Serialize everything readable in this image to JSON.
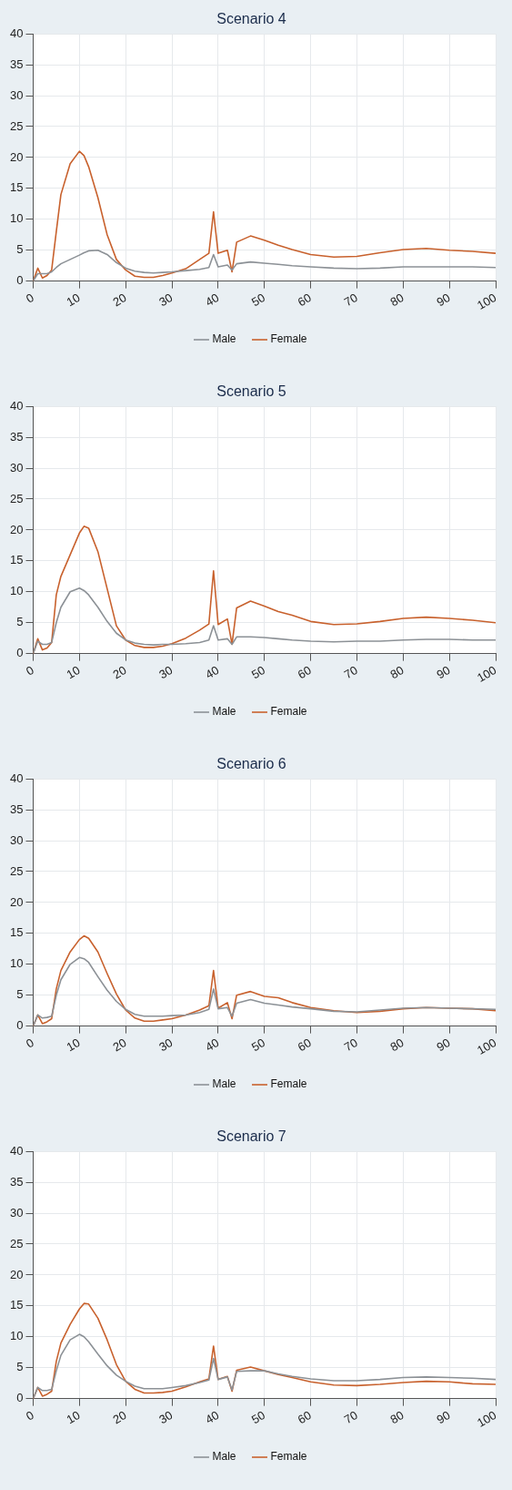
{
  "chart_data": [
    {
      "type": "line",
      "title": "Scenario 4",
      "x": [
        0,
        1,
        2,
        3,
        4,
        5,
        6,
        8,
        10,
        11,
        12,
        14,
        16,
        18,
        20,
        22,
        24,
        26,
        28,
        30,
        33,
        36,
        38,
        39,
        40,
        42,
        43,
        44,
        47,
        50,
        53,
        56,
        60,
        65,
        70,
        75,
        80,
        85,
        90,
        95,
        100
      ],
      "xlim": [
        0,
        100
      ],
      "xticks": [
        0,
        10,
        20,
        30,
        40,
        50,
        60,
        70,
        80,
        90,
        100
      ],
      "ylim": [
        0,
        40
      ],
      "yticks": [
        0,
        5,
        10,
        15,
        20,
        25,
        30,
        35,
        40
      ],
      "grid": true,
      "legend": "bottom",
      "series": [
        {
          "name": "Male",
          "color": "#8c9196",
          "values": [
            0,
            1.2,
            1.2,
            1.2,
            1.5,
            2.2,
            2.8,
            3.5,
            4.2,
            4.6,
            4.9,
            5,
            4.3,
            3,
            2.1,
            1.6,
            1.4,
            1.3,
            1.4,
            1.5,
            1.7,
            1.9,
            2.2,
            4.3,
            2.3,
            2.6,
            1.8,
            2.8,
            3.1,
            2.9,
            2.7,
            2.5,
            2.3,
            2.1,
            2,
            2.1,
            2.3,
            2.3,
            2.3,
            2.3,
            2.2
          ]
        },
        {
          "name": "Female",
          "color": "#c8612d",
          "values": [
            0,
            2.1,
            0.5,
            0.9,
            1.8,
            8,
            14,
            19,
            21,
            20.3,
            18.5,
            13.5,
            7.5,
            3.5,
            1.8,
            0.8,
            0.6,
            0.6,
            0.9,
            1.3,
            2,
            3.5,
            4.5,
            11.2,
            4.5,
            5,
            1.5,
            6.3,
            7.3,
            6.6,
            5.8,
            5.1,
            4.3,
            3.9,
            4,
            4.6,
            5.1,
            5.3,
            5,
            4.8,
            4.5
          ]
        }
      ]
    },
    {
      "type": "line",
      "title": "Scenario 5",
      "x": [
        0,
        1,
        2,
        3,
        4,
        5,
        6,
        8,
        10,
        11,
        12,
        14,
        16,
        18,
        20,
        22,
        24,
        26,
        28,
        30,
        33,
        36,
        38,
        39,
        40,
        42,
        43,
        44,
        47,
        50,
        53,
        56,
        60,
        65,
        70,
        75,
        80,
        85,
        90,
        95,
        100
      ],
      "xlim": [
        0,
        100
      ],
      "xticks": [
        0,
        10,
        20,
        30,
        40,
        50,
        60,
        70,
        80,
        90,
        100
      ],
      "ylim": [
        0,
        40
      ],
      "yticks": [
        0,
        5,
        10,
        15,
        20,
        25,
        30,
        35,
        40
      ],
      "grid": true,
      "legend": "bottom",
      "series": [
        {
          "name": "Male",
          "color": "#8c9196",
          "values": [
            0,
            2,
            1.5,
            1.5,
            1.8,
            5,
            7.5,
            10,
            10.6,
            10.2,
            9.5,
            7.5,
            5.2,
            3.3,
            2.2,
            1.7,
            1.5,
            1.4,
            1.5,
            1.5,
            1.6,
            1.8,
            2.2,
            4.5,
            2.2,
            2.4,
            1.5,
            2.7,
            2.7,
            2.6,
            2.4,
            2.2,
            2,
            1.9,
            2,
            2,
            2.2,
            2.3,
            2.3,
            2.2,
            2.2
          ]
        },
        {
          "name": "Female",
          "color": "#c8612d",
          "values": [
            0,
            2.4,
            0.6,
            0.9,
            1.8,
            9.5,
            12.5,
            16,
            19.5,
            20.6,
            20.3,
            16.5,
            10.5,
            4.5,
            2.2,
            1.3,
            1,
            1,
            1.2,
            1.6,
            2.5,
            3.8,
            4.8,
            13.4,
            4.7,
            5.6,
            1.5,
            7.4,
            8.5,
            7.7,
            6.8,
            6.2,
            5.2,
            4.7,
            4.8,
            5.2,
            5.7,
            5.9,
            5.7,
            5.4,
            5
          ]
        }
      ]
    },
    {
      "type": "line",
      "title": "Scenario 6",
      "x": [
        0,
        1,
        2,
        3,
        4,
        5,
        6,
        8,
        10,
        11,
        12,
        14,
        16,
        18,
        20,
        22,
        24,
        26,
        28,
        30,
        33,
        36,
        38,
        39,
        40,
        42,
        43,
        44,
        47,
        50,
        53,
        56,
        60,
        65,
        70,
        75,
        80,
        85,
        90,
        95,
        100
      ],
      "xlim": [
        0,
        100
      ],
      "xticks": [
        0,
        10,
        20,
        30,
        40,
        50,
        60,
        70,
        80,
        90,
        100
      ],
      "ylim": [
        0,
        40
      ],
      "yticks": [
        0,
        5,
        10,
        15,
        20,
        25,
        30,
        35,
        40
      ],
      "grid": true,
      "legend": "bottom",
      "series": [
        {
          "name": "Male",
          "color": "#8c9196",
          "values": [
            0,
            1.8,
            1.3,
            1.4,
            1.6,
            5,
            7.5,
            10,
            11.1,
            10.9,
            10.3,
            8,
            5.8,
            4,
            2.7,
            1.9,
            1.6,
            1.6,
            1.6,
            1.7,
            1.8,
            2.2,
            2.7,
            6,
            2.8,
            3,
            1.6,
            3.7,
            4.3,
            3.7,
            3.4,
            3.1,
            2.8,
            2.4,
            2.3,
            2.6,
            2.9,
            3,
            2.9,
            2.8,
            2.7
          ]
        },
        {
          "name": "Female",
          "color": "#c8612d",
          "values": [
            0,
            1.8,
            0.4,
            0.7,
            1.2,
            6,
            9,
            12,
            14,
            14.6,
            14.2,
            12,
            8.5,
            5.2,
            2.6,
            1.3,
            0.8,
            0.8,
            1,
            1.2,
            1.8,
            2.6,
            3.3,
            9,
            2.9,
            3.8,
            1.2,
            5,
            5.6,
            4.8,
            4.6,
            3.8,
            3,
            2.5,
            2.2,
            2.4,
            2.8,
            3,
            2.9,
            2.8,
            2.5
          ]
        }
      ]
    },
    {
      "type": "line",
      "title": "Scenario 7",
      "x": [
        0,
        1,
        2,
        3,
        4,
        5,
        6,
        8,
        10,
        11,
        12,
        14,
        16,
        18,
        20,
        22,
        24,
        26,
        28,
        30,
        33,
        36,
        38,
        39,
        40,
        42,
        43,
        44,
        47,
        50,
        53,
        56,
        60,
        65,
        70,
        75,
        80,
        85,
        90,
        95,
        100
      ],
      "xlim": [
        0,
        100
      ],
      "xticks": [
        0,
        10,
        20,
        30,
        40,
        50,
        60,
        70,
        80,
        90,
        100
      ],
      "ylim": [
        0,
        40
      ],
      "yticks": [
        0,
        5,
        10,
        15,
        20,
        25,
        30,
        35,
        40
      ],
      "grid": true,
      "legend": "bottom",
      "series": [
        {
          "name": "Male",
          "color": "#8c9196",
          "values": [
            0,
            1.8,
            1.3,
            1.3,
            1.5,
            4.5,
            7,
            9.5,
            10.4,
            10,
            9.2,
            7.2,
            5.3,
            3.8,
            2.8,
            2,
            1.6,
            1.6,
            1.6,
            1.8,
            2.1,
            2.6,
            3,
            6.5,
            3.1,
            3.5,
            1.4,
            4.4,
            4.5,
            4.5,
            4,
            3.6,
            3.2,
            2.9,
            2.9,
            3.1,
            3.4,
            3.5,
            3.4,
            3.3,
            3.1
          ]
        },
        {
          "name": "Female",
          "color": "#c8612d",
          "values": [
            0,
            1.8,
            0.4,
            0.7,
            1.2,
            6,
            9,
            12,
            14.5,
            15.4,
            15.3,
            13,
            9.5,
            5.5,
            2.8,
            1.5,
            0.9,
            0.9,
            1,
            1.2,
            1.9,
            2.7,
            3.2,
            8.5,
            3.1,
            3.6,
            1.2,
            4.6,
            5.1,
            4.5,
            3.9,
            3.4,
            2.7,
            2.2,
            2.1,
            2.3,
            2.6,
            2.8,
            2.7,
            2.4,
            2.3
          ]
        }
      ]
    }
  ]
}
